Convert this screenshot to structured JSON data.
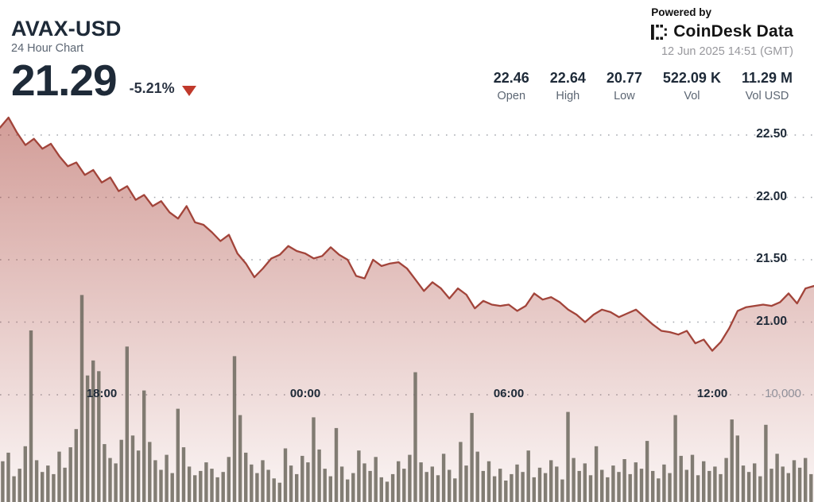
{
  "header": {
    "symbol": "AVAX-USD",
    "subtitle": "24 Hour Chart",
    "price": "21.29",
    "change_percent": "-5.21%",
    "direction": "down",
    "powered_by": "Powered by",
    "brand": "CoinDesk Data",
    "timestamp": "12 Jun 2025 14:51 (GMT)"
  },
  "stats": [
    {
      "value": "22.46",
      "label": "Open"
    },
    {
      "value": "22.64",
      "label": "High"
    },
    {
      "value": "20.77",
      "label": "Low"
    },
    {
      "value": "522.09 K",
      "label": "Vol"
    },
    {
      "value": "11.29 M",
      "label": "Vol USD"
    }
  ],
  "colors": {
    "text_primary": "#1e2a38",
    "text_secondary": "#5c6673",
    "timestamp_gray": "#97979c",
    "negative": "#c0392b",
    "price_line": "#a2443a",
    "area_fill_top": "rgba(166,60,50,0.50)",
    "area_fill_bottom": "rgba(166,60,50,0.05)",
    "volume_bar": "#716c62",
    "grid_dots": "#a3a7ae"
  },
  "chart_data": [
    {
      "type": "area",
      "name": "AVAX-USD price",
      "start_time": "15:00",
      "interval_minutes": 15,
      "x_tick_labels": [
        "18:00",
        "00:00",
        "06:00",
        "12:00"
      ],
      "y_tick_labels": [
        "22.50",
        "22.00",
        "21.50",
        "21.00"
      ],
      "y_axis_side": "right",
      "grid": "dotted",
      "prices": [
        22.56,
        22.64,
        22.52,
        22.42,
        22.47,
        22.39,
        22.43,
        22.33,
        22.25,
        22.28,
        22.18,
        22.22,
        22.12,
        22.16,
        22.05,
        22.09,
        21.98,
        22.02,
        21.93,
        21.97,
        21.88,
        21.83,
        21.93,
        21.8,
        21.78,
        21.72,
        21.65,
        21.7,
        21.55,
        21.47,
        21.36,
        21.43,
        21.51,
        21.54,
        21.61,
        21.57,
        21.55,
        21.51,
        21.53,
        21.6,
        21.54,
        21.5,
        21.37,
        21.35,
        21.5,
        21.45,
        21.47,
        21.48,
        21.43,
        21.34,
        21.25,
        21.32,
        21.27,
        21.19,
        21.27,
        21.22,
        21.11,
        21.17,
        21.14,
        21.13,
        21.14,
        21.09,
        21.13,
        21.23,
        21.18,
        21.2,
        21.16,
        21.1,
        21.06,
        21.0,
        21.06,
        21.1,
        21.08,
        21.04,
        21.07,
        21.1,
        21.04,
        20.98,
        20.93,
        20.92,
        20.9,
        20.93,
        20.83,
        20.86,
        20.77,
        20.84,
        20.95,
        21.09,
        21.12,
        21.13,
        21.14,
        21.13,
        21.16,
        21.23,
        21.15,
        21.27,
        21.29
      ]
    },
    {
      "type": "bar",
      "name": "Volume",
      "start_time": "15:00",
      "interval_minutes": 10,
      "y_tick_labels": [
        "10,000"
      ],
      "y_tick_value": 10000,
      "values": [
        3800,
        4600,
        2400,
        3100,
        5200,
        16000,
        3900,
        2800,
        3400,
        2600,
        4700,
        3200,
        5100,
        6800,
        19300,
        11800,
        13200,
        12200,
        5400,
        4100,
        3600,
        5800,
        14500,
        6200,
        4800,
        10400,
        5600,
        3900,
        3000,
        4400,
        2700,
        8700,
        5100,
        3300,
        2500,
        2900,
        3700,
        3100,
        2300,
        2800,
        4200,
        13600,
        8100,
        4600,
        3500,
        2700,
        3900,
        3000,
        2200,
        1800,
        5000,
        3400,
        2600,
        4300,
        3700,
        7900,
        4900,
        3100,
        2400,
        6900,
        3300,
        2100,
        2700,
        4800,
        3600,
        2900,
        4200,
        2300,
        1900,
        2600,
        3800,
        3100,
        4400,
        12100,
        3700,
        2800,
        3300,
        2500,
        4500,
        3000,
        2200,
        5600,
        3400,
        8300,
        4700,
        2900,
        3800,
        2400,
        3100,
        2000,
        2600,
        3500,
        2800,
        4800,
        2300,
        3200,
        2700,
        3900,
        3300,
        2100,
        8400,
        4100,
        2900,
        3600,
        2500,
        5200,
        3000,
        2300,
        3400,
        2800,
        4000,
        2600,
        3700,
        3100,
        5700,
        2900,
        2200,
        3500,
        2700,
        8100,
        4300,
        3000,
        4400,
        2500,
        3800,
        2900,
        3300,
        2600,
        4100,
        7700,
        6200,
        3400,
        2800,
        3600,
        2400,
        7200,
        3100,
        4500,
        3300,
        2700,
        3900,
        3200,
        4100,
        2600
      ]
    }
  ]
}
